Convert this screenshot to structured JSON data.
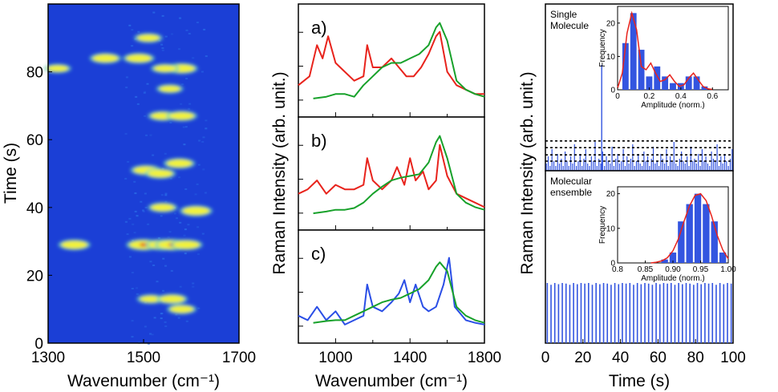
{
  "figure_title": "",
  "chart_data": [
    {
      "type": "heatmap",
      "xlabel": "Wavenumber (cm⁻¹)",
      "ylabel": "Time (s)",
      "xlim": [
        1300,
        1700
      ],
      "ylim": [
        0,
        100
      ],
      "xticks": [
        1300,
        1500,
        1700
      ],
      "yticks": [
        0,
        20,
        40,
        60,
        80
      ],
      "colors": {
        "background": "#1b3fd6",
        "low": "#2a6ee8",
        "mid": "#6fd0c0",
        "high": "#f2f23a",
        "peak": "#e0201a"
      },
      "spots": [
        {
          "x": 1355,
          "t": 29,
          "intensity": 0.8
        },
        {
          "x": 1500,
          "t": 29,
          "intensity": 1.0
        },
        {
          "x": 1540,
          "t": 29,
          "intensity": 0.95
        },
        {
          "x": 1560,
          "t": 29,
          "intensity": 1.0
        },
        {
          "x": 1590,
          "t": 29,
          "intensity": 0.8
        },
        {
          "x": 1515,
          "t": 13,
          "intensity": 0.45
        },
        {
          "x": 1560,
          "t": 13,
          "intensity": 0.7
        },
        {
          "x": 1580,
          "t": 10,
          "intensity": 0.6
        },
        {
          "x": 1540,
          "t": 40,
          "intensity": 0.6
        },
        {
          "x": 1610,
          "t": 39,
          "intensity": 0.85
        },
        {
          "x": 1505,
          "t": 51,
          "intensity": 0.7
        },
        {
          "x": 1535,
          "t": 50,
          "intensity": 0.7
        },
        {
          "x": 1575,
          "t": 53,
          "intensity": 0.75
        },
        {
          "x": 1540,
          "t": 67,
          "intensity": 0.6
        },
        {
          "x": 1580,
          "t": 67,
          "intensity": 0.7
        },
        {
          "x": 1580,
          "t": 81,
          "intensity": 0.8
        },
        {
          "x": 1545,
          "t": 81,
          "intensity": 0.5
        },
        {
          "x": 1420,
          "t": 84,
          "intensity": 0.75
        },
        {
          "x": 1490,
          "t": 84,
          "intensity": 0.75
        },
        {
          "x": 1320,
          "t": 81,
          "intensity": 0.4
        },
        {
          "x": 1510,
          "t": 90,
          "intensity": 0.5
        },
        {
          "x": 1555,
          "t": 75,
          "intensity": 0.4
        }
      ]
    },
    {
      "type": "line",
      "xlabel": "Wavenumber (cm⁻¹)",
      "ylabel": "Raman Intensity (arb. unit.)",
      "xlim": [
        800,
        1800
      ],
      "xticks": [
        1000,
        1400,
        1800
      ],
      "panels": [
        {
          "label": "a)",
          "series": [
            {
              "name": "single",
              "color": "#e8231c",
              "x": [
                800,
                860,
                900,
                930,
                960,
                1000,
                1050,
                1100,
                1150,
                1170,
                1200,
                1250,
                1300,
                1340,
                1380,
                1420,
                1460,
                1500,
                1540,
                1560,
                1600,
                1650,
                1700,
                1750,
                1800
              ],
              "y": [
                0.25,
                0.35,
                0.7,
                0.55,
                0.8,
                0.5,
                0.4,
                0.3,
                0.35,
                0.7,
                0.45,
                0.45,
                0.55,
                0.45,
                0.35,
                0.35,
                0.45,
                0.6,
                0.8,
                0.85,
                0.4,
                0.25,
                0.2,
                0.15,
                0.15
              ]
            },
            {
              "name": "ensemble",
              "color": "#17a12a",
              "x": [
                880,
                950,
                1000,
                1050,
                1100,
                1150,
                1200,
                1250,
                1300,
                1350,
                1400,
                1450,
                1500,
                1540,
                1560,
                1600,
                1650,
                1700,
                1750,
                1800
              ],
              "y": [
                0.1,
                0.12,
                0.15,
                0.15,
                0.12,
                0.25,
                0.35,
                0.45,
                0.5,
                0.5,
                0.55,
                0.6,
                0.7,
                0.9,
                0.95,
                0.75,
                0.3,
                0.2,
                0.15,
                0.12
              ]
            }
          ]
        },
        {
          "label": "b)",
          "series": [
            {
              "name": "single",
              "color": "#e8231c",
              "x": [
                800,
                850,
                900,
                950,
                1000,
                1050,
                1100,
                1150,
                1170,
                1200,
                1250,
                1300,
                1330,
                1370,
                1400,
                1430,
                1470,
                1500,
                1540,
                1560,
                1600,
                1650,
                1700,
                1750,
                1800
              ],
              "y": [
                0.3,
                0.35,
                0.45,
                0.3,
                0.4,
                0.35,
                0.35,
                0.4,
                0.7,
                0.45,
                0.35,
                0.45,
                0.6,
                0.4,
                0.7,
                0.45,
                0.55,
                0.35,
                0.45,
                0.85,
                0.5,
                0.3,
                0.25,
                0.2,
                0.15
              ]
            },
            {
              "name": "ensemble",
              "color": "#17a12a",
              "x": [
                880,
                950,
                1000,
                1050,
                1100,
                1150,
                1200,
                1250,
                1300,
                1350,
                1400,
                1450,
                1500,
                1540,
                1560,
                1600,
                1650,
                1700,
                1750,
                1800
              ],
              "y": [
                0.08,
                0.1,
                0.12,
                0.12,
                0.14,
                0.2,
                0.3,
                0.38,
                0.45,
                0.48,
                0.5,
                0.52,
                0.65,
                0.88,
                0.95,
                0.7,
                0.3,
                0.2,
                0.15,
                0.12
              ]
            }
          ]
        },
        {
          "label": "c)",
          "series": [
            {
              "name": "single",
              "color": "#2a4ee6",
              "x": [
                800,
                850,
                900,
                950,
                1000,
                1050,
                1100,
                1150,
                1170,
                1200,
                1250,
                1300,
                1340,
                1370,
                1400,
                1430,
                1470,
                1500,
                1540,
                1580,
                1610,
                1640,
                1700,
                1750,
                1800
              ],
              "y": [
                0.2,
                0.15,
                0.3,
                0.15,
                0.25,
                0.1,
                0.15,
                0.2,
                0.55,
                0.3,
                0.25,
                0.35,
                0.45,
                0.6,
                0.35,
                0.55,
                0.3,
                0.25,
                0.3,
                0.55,
                0.85,
                0.3,
                0.15,
                0.12,
                0.1
              ]
            },
            {
              "name": "ensemble",
              "color": "#17a12a",
              "x": [
                880,
                950,
                1000,
                1050,
                1100,
                1150,
                1200,
                1250,
                1300,
                1350,
                1400,
                1450,
                1500,
                1540,
                1560,
                1600,
                1650,
                1700,
                1750,
                1800
              ],
              "y": [
                0.12,
                0.14,
                0.15,
                0.15,
                0.2,
                0.25,
                0.3,
                0.35,
                0.38,
                0.4,
                0.45,
                0.5,
                0.6,
                0.75,
                0.8,
                0.7,
                0.3,
                0.2,
                0.15,
                0.12
              ]
            }
          ]
        }
      ]
    },
    {
      "type": "bar",
      "xlabel": "Time (s)",
      "ylabel": "Raman Intensity (arb. unit.)",
      "xlim": [
        0,
        100
      ],
      "xticks": [
        0,
        20,
        40,
        60,
        80,
        100
      ],
      "bar_color": "#3355e0",
      "panels": [
        {
          "label": "Single Molecule",
          "values": [
            0.15,
            0.3,
            0.1,
            0.45,
            0.2,
            0.1,
            0.35,
            0.15,
            0.25,
            0.1,
            0.4,
            0.2,
            0.1,
            0.3,
            0.15,
            0.55,
            0.1,
            0.2,
            0.35,
            0.1,
            0.25,
            0.45,
            0.15,
            0.1,
            0.3,
            0.2,
            0.6,
            0.1,
            0.25,
            0.15,
            0.4,
            0.1,
            0.3,
            0.2,
            0.15,
            0.5,
            0.1,
            0.25,
            0.35,
            0.15,
            0.2,
            0.45,
            0.1,
            0.3,
            0.15,
            0.25,
            0.55,
            0.1,
            0.2,
            0.35,
            0.15,
            0.1,
            0.4,
            0.2,
            0.3,
            0.1,
            0.25,
            0.5,
            0.15,
            0.2,
            0.1,
            0.35,
            0.25,
            0.15,
            0.45,
            0.1,
            0.3,
            0.2,
            0.6,
            0.15,
            0.1,
            0.25,
            0.4,
            0.2,
            0.15,
            0.3,
            0.1,
            0.5,
            0.2,
            0.25,
            0.15,
            0.35,
            0.1,
            0.45,
            0.2,
            0.3,
            0.15,
            0.1,
            0.4,
            0.25,
            0.2,
            0.55,
            0.1,
            0.3,
            0.15,
            0.35,
            0.2,
            0.1,
            0.25,
            0.45
          ],
          "spike": {
            "t": 30,
            "value": 1.0
          },
          "dashed_levels": [
            0.2,
            0.33,
            0.48,
            0.62
          ],
          "inset": {
            "xlabel": "Amplitude (norm.)",
            "ylabel": "Frequency",
            "xlim": [
              0.0,
              0.7
            ],
            "xticks": [
              0.0,
              0.2,
              0.4,
              0.6
            ],
            "ylim": [
              0,
              25
            ],
            "yticks": [
              0,
              10,
              20
            ],
            "bins": [
              0.05,
              0.1,
              0.15,
              0.2,
              0.25,
              0.3,
              0.35,
              0.4,
              0.45,
              0.5,
              0.55
            ],
            "counts": [
              14,
              23,
              12,
              4,
              7,
              4,
              2,
              2,
              4,
              4,
              1
            ],
            "fit_color": "#e8231c",
            "fit_x": [
              0.0,
              0.03,
              0.06,
              0.09,
              0.12,
              0.15,
              0.18,
              0.21,
              0.24,
              0.27,
              0.3,
              0.33,
              0.36,
              0.39,
              0.42,
              0.45,
              0.48,
              0.51,
              0.54,
              0.57,
              0.6
            ],
            "fit_y": [
              0.5,
              5,
              17,
              23,
              18,
              7,
              6,
              8,
              5,
              2.5,
              3,
              4.5,
              2.5,
              1,
              1.5,
              3.5,
              5,
              3,
              1,
              0.3,
              0.1
            ]
          }
        },
        {
          "label": "Molecular ensemble",
          "values": [
            1.0,
            0.97,
            1.0,
            0.98,
            1.0,
            0.99,
            0.97,
            1.0,
            0.98,
            1.0,
            0.99,
            1.0,
            0.97,
            1.0,
            0.98,
            1.0,
            0.99,
            0.97,
            1.0,
            0.98,
            1.0,
            0.99,
            1.0,
            0.97,
            1.0,
            0.98,
            1.0,
            0.99,
            0.97,
            1.0,
            0.98,
            1.0,
            0.99,
            1.0,
            0.97,
            1.0,
            0.98,
            1.0,
            0.99,
            0.97,
            1.0,
            0.98,
            1.0,
            0.99,
            1.0,
            0.97,
            1.0,
            0.98,
            1.0,
            0.99
          ],
          "inset": {
            "xlabel": "Amplitude (norm.)",
            "ylabel": "Frequency",
            "xlim": [
              0.8,
              1.0
            ],
            "xticks": [
              "0.8",
              "0.85",
              "0.90",
              "0.95",
              "1.00"
            ],
            "ylim": [
              0,
              22
            ],
            "yticks": [
              0,
              10,
              20
            ],
            "bins": [
              0.885,
              0.9,
              0.915,
              0.93,
              0.945,
              0.96,
              0.975,
              0.99
            ],
            "counts": [
              1,
              3,
              12,
              17,
              20,
              17,
              12,
              3
            ],
            "fit_color": "#e8231c",
            "fit_x": [
              0.86,
              0.87,
              0.88,
              0.89,
              0.9,
              0.91,
              0.92,
              0.93,
              0.94,
              0.95,
              0.96,
              0.97,
              0.98,
              0.99,
              1.0,
              1.01
            ],
            "fit_y": [
              0,
              0.2,
              0.6,
              1.5,
              3.5,
              7,
              12,
              16.5,
              19.5,
              20,
              18,
              13.5,
              8,
              3.8,
              1.2,
              0.2
            ]
          }
        }
      ]
    }
  ]
}
